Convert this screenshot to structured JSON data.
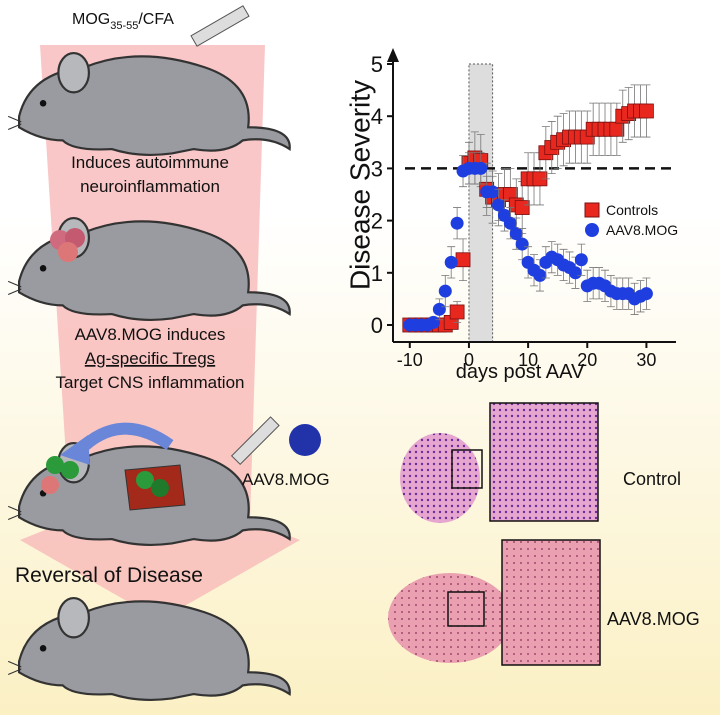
{
  "labels": {
    "immunization": {
      "main": "MOG",
      "subscript": "35-55",
      "suffix": "/CFA"
    },
    "induces": [
      "Induces autoimmune",
      "neuroinflammation"
    ],
    "mechanism": [
      "AAV8.MOG induces",
      "Ag-specific Tregs",
      "Target CNS inflammation"
    ],
    "vector": "AAV8.MOG",
    "reversal": "Reversal of Disease",
    "histology_control": "Control",
    "histology_treated": "AAV8.MOG"
  },
  "chart_data": {
    "type": "scatter",
    "x_label": "days post AAV",
    "y_label": "Disease Severity",
    "x": [
      -10,
      -9,
      -8,
      -7,
      -6,
      -5,
      -4,
      -3,
      -2,
      -1,
      0,
      1,
      2,
      3,
      4,
      5,
      6,
      7,
      8,
      9,
      10,
      11,
      12,
      13,
      14,
      15,
      16,
      17,
      18,
      19,
      20,
      21,
      22,
      23,
      24,
      25,
      26,
      27,
      28,
      29,
      30
    ],
    "series": [
      {
        "name": "Controls",
        "color": "#e8281e",
        "marker": "square",
        "values": [
          0,
          0,
          0,
          0,
          0,
          0,
          0,
          0.05,
          0.25,
          1.25,
          3.1,
          3.2,
          3.15,
          2.6,
          2.45,
          2.4,
          2.5,
          2.5,
          2.3,
          2.25,
          2.8,
          2.8,
          2.8,
          3.3,
          3.4,
          3.5,
          3.55,
          3.6,
          3.6,
          3.6,
          3.6,
          3.75,
          3.75,
          3.75,
          3.75,
          3.75,
          4.0,
          4.05,
          4.1,
          4.1,
          4.1
        ],
        "errors": [
          0,
          0,
          0,
          0,
          0,
          0,
          0,
          0.1,
          0.2,
          0.4,
          0.4,
          0.5,
          0.5,
          0.5,
          0.5,
          0.5,
          0.5,
          0.5,
          0.5,
          0.5,
          0.5,
          0.5,
          0.5,
          0.5,
          0.5,
          0.5,
          0.5,
          0.5,
          0.5,
          0.5,
          0.5,
          0.5,
          0.5,
          0.5,
          0.5,
          0.5,
          0.5,
          0.5,
          0.5,
          0.5,
          0.5
        ]
      },
      {
        "name": "AAV8.MOG",
        "color": "#1f3ee0",
        "marker": "circle",
        "values": [
          0,
          0,
          0,
          0,
          0.05,
          0.3,
          0.65,
          1.2,
          1.95,
          2.95,
          3.0,
          3.0,
          3.0,
          2.55,
          2.55,
          2.3,
          2.1,
          1.95,
          1.75,
          1.55,
          1.2,
          1.05,
          0.95,
          1.2,
          1.3,
          1.25,
          1.15,
          1.1,
          1.0,
          1.25,
          0.75,
          0.8,
          0.8,
          0.75,
          0.65,
          0.6,
          0.6,
          0.6,
          0.5,
          0.55,
          0.6
        ],
        "errors": [
          0,
          0,
          0,
          0,
          0.1,
          0.2,
          0.3,
          0.3,
          0.3,
          0.3,
          0.3,
          0.3,
          0.3,
          0.3,
          0.3,
          0.3,
          0.3,
          0.3,
          0.3,
          0.3,
          0.3,
          0.3,
          0.3,
          0.3,
          0.3,
          0.3,
          0.3,
          0.3,
          0.3,
          0.3,
          0.3,
          0.3,
          0.3,
          0.3,
          0.3,
          0.3,
          0.3,
          0.3,
          0.3,
          0.3,
          0.3
        ]
      }
    ],
    "xlim": [
      -12.5,
      35
    ],
    "ylim": [
      0,
      5
    ],
    "xticks": [
      -10,
      0,
      10,
      20,
      30
    ],
    "yticks": [
      0,
      1,
      2,
      3,
      4,
      5
    ],
    "reference_y": 3,
    "shaded_x": [
      0,
      4
    ],
    "legend": "right"
  }
}
